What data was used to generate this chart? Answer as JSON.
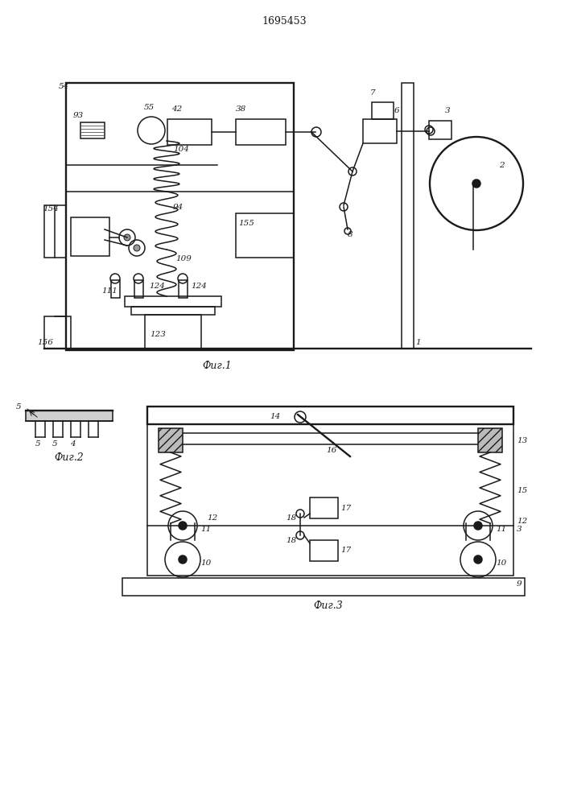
{
  "title": "1695453",
  "fig1_label": "Фиг.1",
  "fig2_label": "Фиг.2",
  "fig3_label": "Фиг.3",
  "bg_color": "#ffffff",
  "lc": "#1a1a1a"
}
